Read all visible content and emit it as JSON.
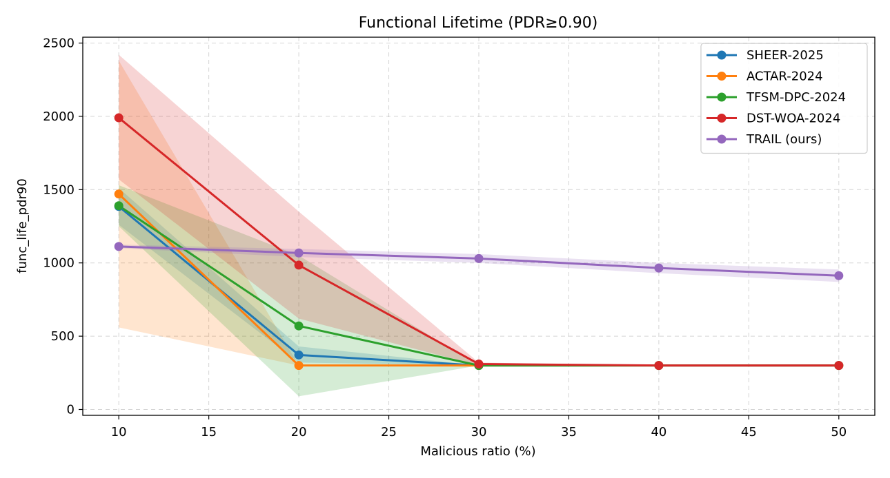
{
  "chart_data": {
    "type": "line",
    "title": "Functional Lifetime (PDR≥0.90)",
    "xlabel": "Malicious ratio (%)",
    "ylabel": "func_life_pdr90",
    "x": [
      10,
      20,
      30,
      40,
      50
    ],
    "xlim": [
      8,
      52
    ],
    "ylim": [
      -40,
      2540
    ],
    "xticks": [
      10,
      15,
      20,
      25,
      30,
      35,
      40,
      45,
      50
    ],
    "yticks": [
      0,
      500,
      1000,
      1500,
      2000,
      2500
    ],
    "grid": true,
    "legend_position": "top-right",
    "series": [
      {
        "name": "SHEER-2025",
        "color": "#1f77b4",
        "values": [
          1385,
          372,
          300,
          300,
          300
        ],
        "band_lower": [
          1260,
          320,
          300,
          300,
          300
        ],
        "band_upper": [
          1510,
          430,
          300,
          300,
          300
        ]
      },
      {
        "name": "ACTAR-2024",
        "color": "#ff7f0e",
        "values": [
          1470,
          300,
          300,
          300,
          300
        ],
        "band_lower": [
          560,
          300,
          300,
          300,
          300
        ],
        "band_upper": [
          2380,
          300,
          300,
          300,
          300
        ]
      },
      {
        "name": "TFSM-DPC-2024",
        "color": "#2ca02c",
        "values": [
          1390,
          570,
          300,
          300,
          300
        ],
        "band_lower": [
          1250,
          90,
          300,
          300,
          300
        ],
        "band_upper": [
          1530,
          1050,
          300,
          300,
          300
        ]
      },
      {
        "name": "DST-WOA-2024",
        "color": "#d62728",
        "values": [
          1990,
          985,
          310,
          300,
          300
        ],
        "band_lower": [
          1570,
          620,
          300,
          300,
          300
        ],
        "band_upper": [
          2420,
          1350,
          320,
          300,
          300
        ]
      },
      {
        "name": "TRAIL (ours)",
        "color": "#9467bd",
        "values": [
          1112,
          1068,
          1030,
          965,
          913
        ],
        "band_lower": [
          1100,
          1040,
          1000,
          930,
          870
        ],
        "band_upper": [
          1125,
          1095,
          1060,
          1000,
          955
        ]
      }
    ]
  }
}
